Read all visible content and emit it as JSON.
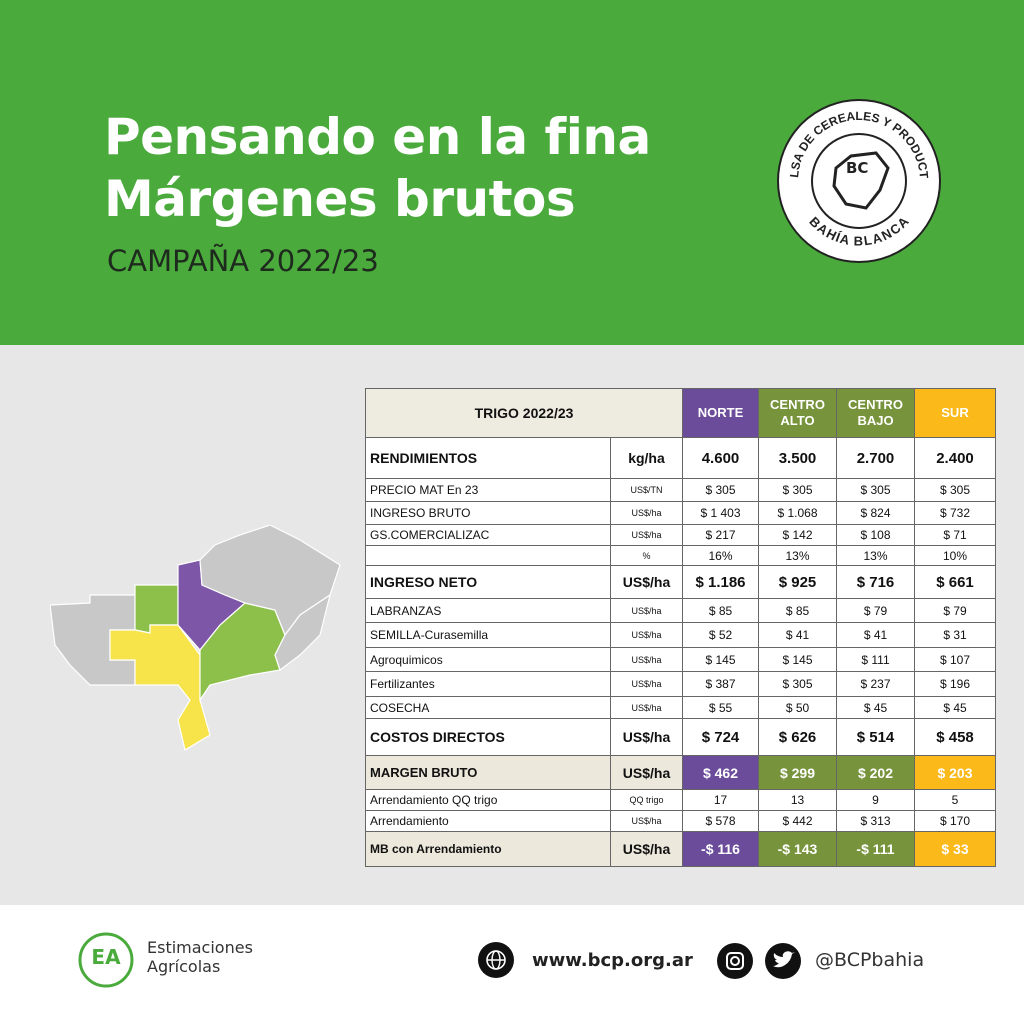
{
  "header": {
    "title_line1": "Pensando en la fina",
    "title_line2": "Márgenes brutos",
    "subtitle": "CAMPAÑA 2022/23"
  },
  "logo": {
    "top": "BOLSA DE CEREALES Y PRODUCTOS",
    "bottom": "BAHÍA BLANCA",
    "mark": "BC"
  },
  "table": {
    "title": "TRIGO 2022/23",
    "columns": [
      "NORTE",
      "CENTRO ALTO",
      "CENTRO BAJO",
      "SUR"
    ],
    "rows": [
      {
        "label": "RENDIMIENTOS",
        "unit": "kg/ha",
        "values": [
          "4.600",
          "3.500",
          "2.700",
          "2.400"
        ]
      },
      {
        "label": "PRECIO  MAT En 23",
        "unit": "US$/TN",
        "values": [
          "$ 305",
          "$ 305",
          "$ 305",
          "$ 305"
        ]
      },
      {
        "label": "INGRESO BRUTO",
        "unit": "US$/ha",
        "values": [
          "$ 1 403",
          "$ 1.068",
          "$ 824",
          "$ 732"
        ]
      },
      {
        "label": "GS.COMERCIALIZAC",
        "unit": "US$/ha",
        "values": [
          "$ 217",
          "$ 142",
          "$ 108",
          "$ 71"
        ]
      },
      {
        "label": null,
        "unit": "%",
        "values": [
          "16%",
          "13%",
          "13%",
          "10%"
        ]
      },
      {
        "label": "INGRESO NETO",
        "unit": "US$/ha",
        "values": [
          "$ 1.186",
          "$ 925",
          "$ 716",
          "$ 661"
        ]
      },
      {
        "label": "LABRANZAS",
        "unit": "US$/ha",
        "values": [
          "$ 85",
          "$ 85",
          "$ 79",
          "$ 79"
        ]
      },
      {
        "label": "SEMILLA-Curasemilla",
        "unit": "US$/ha",
        "values": [
          "$ 52",
          "$ 41",
          "$ 41",
          "$ 31"
        ]
      },
      {
        "label": "Agroquimicos",
        "unit": "US$/ha",
        "values": [
          "$ 145",
          "$ 145",
          "$ 111",
          "$ 107"
        ]
      },
      {
        "label": "Fertilizantes",
        "unit": "US$/ha",
        "values": [
          "$ 387",
          "$ 305",
          "$ 237",
          "$ 196"
        ]
      },
      {
        "label": "COSECHA",
        "unit": "US$/ha",
        "values": [
          "$ 55",
          "$ 50",
          "$ 45",
          "$ 45"
        ]
      },
      {
        "label": "COSTOS DIRECTOS",
        "unit": "US$/ha",
        "values": [
          "$ 724",
          "$ 626",
          "$ 514",
          "$ 458"
        ]
      },
      {
        "label": "MARGEN BRUTO",
        "unit": "US$/ha",
        "values": [
          "$ 462",
          "$ 299",
          "$ 202",
          "$ 203"
        ]
      },
      {
        "label": "Arrendamiento QQ trigo",
        "unit": "QQ trigo",
        "values": [
          "17",
          "13",
          "9",
          "5"
        ]
      },
      {
        "label": "Arrendamiento",
        "unit": "US$/ha",
        "values": [
          "$ 578",
          "$ 442",
          "$ 313",
          "$ 170"
        ]
      },
      {
        "label": "MB con Arrendamiento",
        "unit": "US$/ha",
        "values": [
          "-$ 116",
          "-$ 143",
          "-$ 111",
          "$ 33"
        ]
      }
    ]
  },
  "footer": {
    "ea_mark": "EA",
    "ea_line1": "Estimaciones",
    "ea_line2": "Agrícolas",
    "website": "www.bcp.org.ar",
    "handle": "@BCPbahia"
  }
}
